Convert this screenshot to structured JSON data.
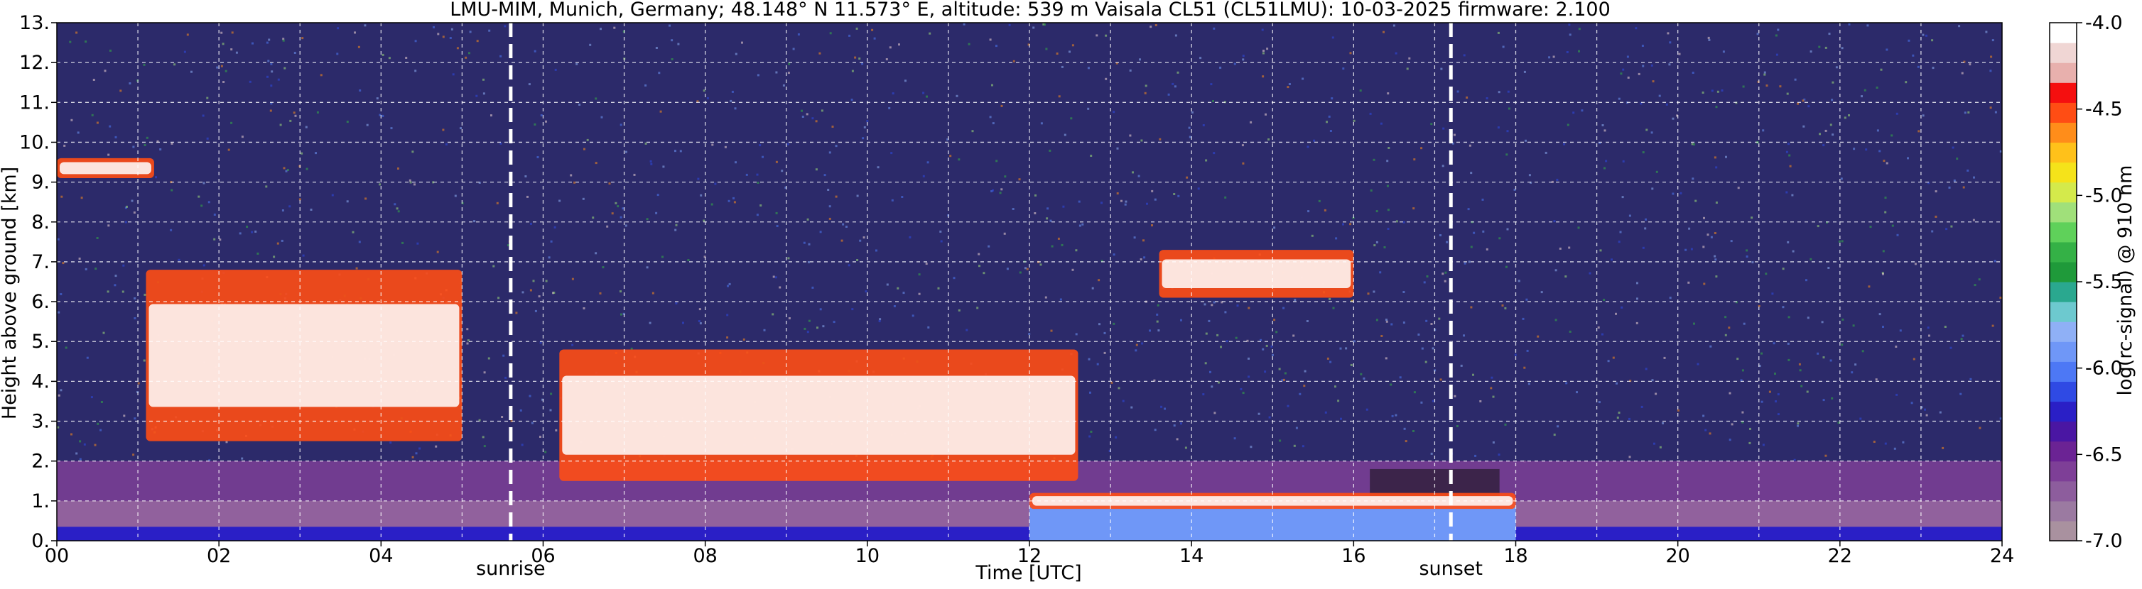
{
  "title": "LMU-MIM, Munich, Germany; 48.148° N 11.573° E, altitude: 539 m    Vaisala CL51 (CL51LMU): 10-03-2025    firmware: 2.100",
  "chart_data": {
    "type": "heatmap",
    "xlabel": "Time [UTC]",
    "ylabel": "Height above ground [km]",
    "xlim": [
      0,
      24
    ],
    "ylim": [
      0,
      13
    ],
    "x_ticks": [
      "00",
      "02",
      "04",
      "06",
      "08",
      "10",
      "12",
      "14",
      "16",
      "18",
      "20",
      "22",
      "24"
    ],
    "y_ticks": [
      "0.",
      "1.",
      "2.",
      "3.",
      "4.",
      "5.",
      "6.",
      "7.",
      "8.",
      "9.",
      "10.",
      "11.",
      "12.",
      "13."
    ],
    "grid": true,
    "colorbar": {
      "label": "log(rc-signal) @ 910 nm",
      "range": [
        -7.0,
        -4.0
      ],
      "ticks": [
        "-4.0",
        "-4.5",
        "-5.0",
        "-5.5",
        "-6.0",
        "-6.5",
        "-7.0"
      ],
      "colors": [
        "#a9919f",
        "#9b7aa1",
        "#8d5d9d",
        "#7e3f97",
        "#6b2394",
        "#4a16a3",
        "#2a1fc6",
        "#2f4ae4",
        "#4d78f5",
        "#6f97f7",
        "#8fb0f6",
        "#6dc9cf",
        "#2aa88f",
        "#1f9a3a",
        "#34b146",
        "#5fd15a",
        "#a0e07a",
        "#d4ea4b",
        "#f5e31a",
        "#ffc11a",
        "#ff8d1a",
        "#ff4d14",
        "#f50f0f",
        "#e8b0ad",
        "#f0d6d4",
        "#ffffff"
      ]
    },
    "annotations": [
      {
        "label": "sunrise",
        "x": 5.6
      },
      {
        "label": "sunset",
        "x": 17.2
      }
    ],
    "cloud_features": [
      {
        "description": "cirrus layer",
        "x_start": 0.0,
        "x_end": 1.2,
        "y_start": 9.1,
        "y_end": 9.6
      },
      {
        "description": "descending cloud layer",
        "x_start": 1.1,
        "x_end": 5.0,
        "y_start": 2.5,
        "y_end": 6.8
      },
      {
        "description": "cloud layer",
        "x_start": 6.2,
        "x_end": 12.6,
        "y_start": 1.5,
        "y_end": 4.8
      },
      {
        "description": "mid-level cloud",
        "x_start": 13.6,
        "x_end": 16.0,
        "y_start": 6.1,
        "y_end": 7.3
      },
      {
        "description": "boundary layer top",
        "x_start": 12.0,
        "x_end": 18.0,
        "y_start": 0.8,
        "y_end": 1.2
      }
    ]
  }
}
